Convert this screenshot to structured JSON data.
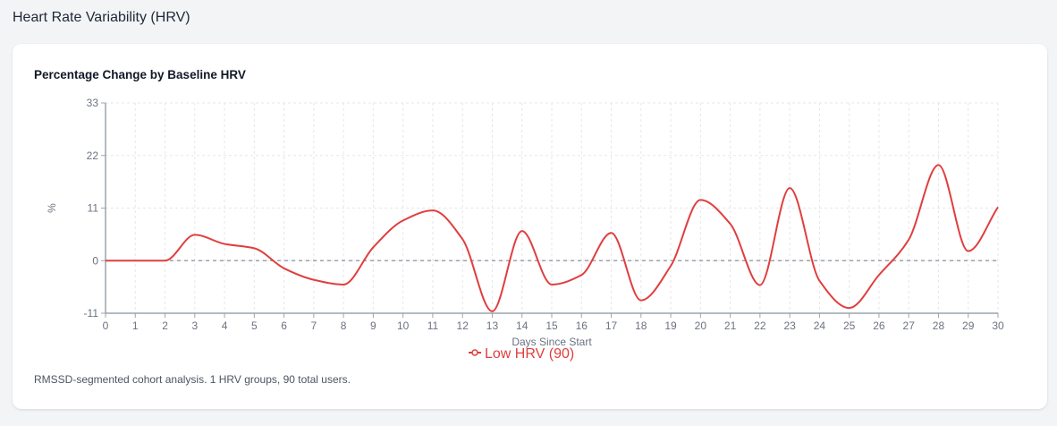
{
  "page": {
    "section_title": "Heart Rate Variability (HRV)"
  },
  "card": {
    "title": "Percentage Change by Baseline HRV",
    "footnote": "RMSSD-segmented cohort analysis. 1 HRV groups, 90 total users."
  },
  "colors": {
    "series": "#e03e3e",
    "grid": "#e5e7eb",
    "axis": "#9ca3af",
    "zero_line": "#9ca3af"
  },
  "chart_data": {
    "type": "line",
    "title": "Percentage Change by Baseline HRV",
    "xlabel": "Days Since Start",
    "ylabel": "%",
    "xlim": [
      0,
      30
    ],
    "ylim": [
      -11,
      33
    ],
    "x_ticks": [
      0,
      1,
      2,
      3,
      4,
      5,
      6,
      7,
      8,
      9,
      10,
      11,
      12,
      13,
      14,
      15,
      16,
      17,
      18,
      19,
      20,
      21,
      22,
      23,
      24,
      25,
      26,
      27,
      28,
      29,
      30
    ],
    "y_ticks": [
      -11,
      0,
      11,
      22,
      33
    ],
    "grid": true,
    "reference_line": {
      "y": 0,
      "style": "dashed"
    },
    "legend_position": "bottom",
    "x": [
      0,
      1,
      2,
      3,
      4,
      5,
      6,
      7,
      8,
      9,
      10,
      11,
      12,
      13,
      14,
      15,
      16,
      17,
      18,
      19,
      20,
      21,
      22,
      23,
      24,
      25,
      26,
      27,
      28,
      29,
      30
    ],
    "series": [
      {
        "name": "Low HRV (90)",
        "color": "#e03e3e",
        "values": [
          0,
          0,
          0,
          5.4,
          3.5,
          2.6,
          -1.6,
          -4.0,
          -5.0,
          2.8,
          8.4,
          10.5,
          4.5,
          -10.6,
          6.2,
          -5.0,
          -3.0,
          5.8,
          -8.3,
          -1.1,
          12.7,
          7.7,
          -5.1,
          15.2,
          -4.2,
          -9.9,
          -3.0,
          4.4,
          20.0,
          2.0,
          11.2
        ]
      }
    ]
  }
}
